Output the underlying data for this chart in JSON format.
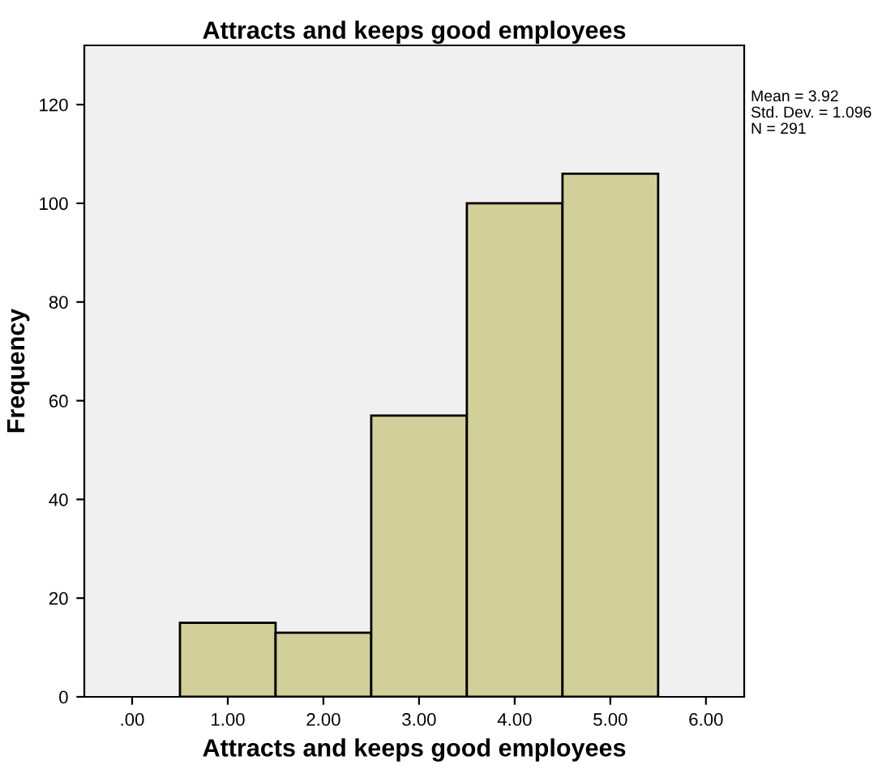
{
  "chart_data": {
    "type": "histogram",
    "title": "Attracts and keeps good employees",
    "xlabel": "Attracts and keeps good employees",
    "ylabel": "Frequency",
    "bins": [
      0.5,
      1.5,
      2.5,
      3.5,
      4.5,
      5.5
    ],
    "values": [
      15,
      13,
      57,
      100,
      106
    ],
    "color": "#d3cf9b",
    "xlim": [
      -0.5,
      6.4
    ],
    "ylim": [
      0,
      132
    ],
    "xticks": [
      {
        "value": 0,
        "label": ".00"
      },
      {
        "value": 1,
        "label": "1.00"
      },
      {
        "value": 2,
        "label": "2.00"
      },
      {
        "value": 3,
        "label": "3.00"
      },
      {
        "value": 4,
        "label": "4.00"
      },
      {
        "value": 5,
        "label": "5.00"
      },
      {
        "value": 6,
        "label": "6.00"
      }
    ],
    "yticks": [
      0,
      20,
      40,
      60,
      80,
      100,
      120
    ],
    "grid": false,
    "annotations": [
      "Mean = 3.92",
      "Std. Dev. = 1.096",
      "N = 291"
    ]
  }
}
